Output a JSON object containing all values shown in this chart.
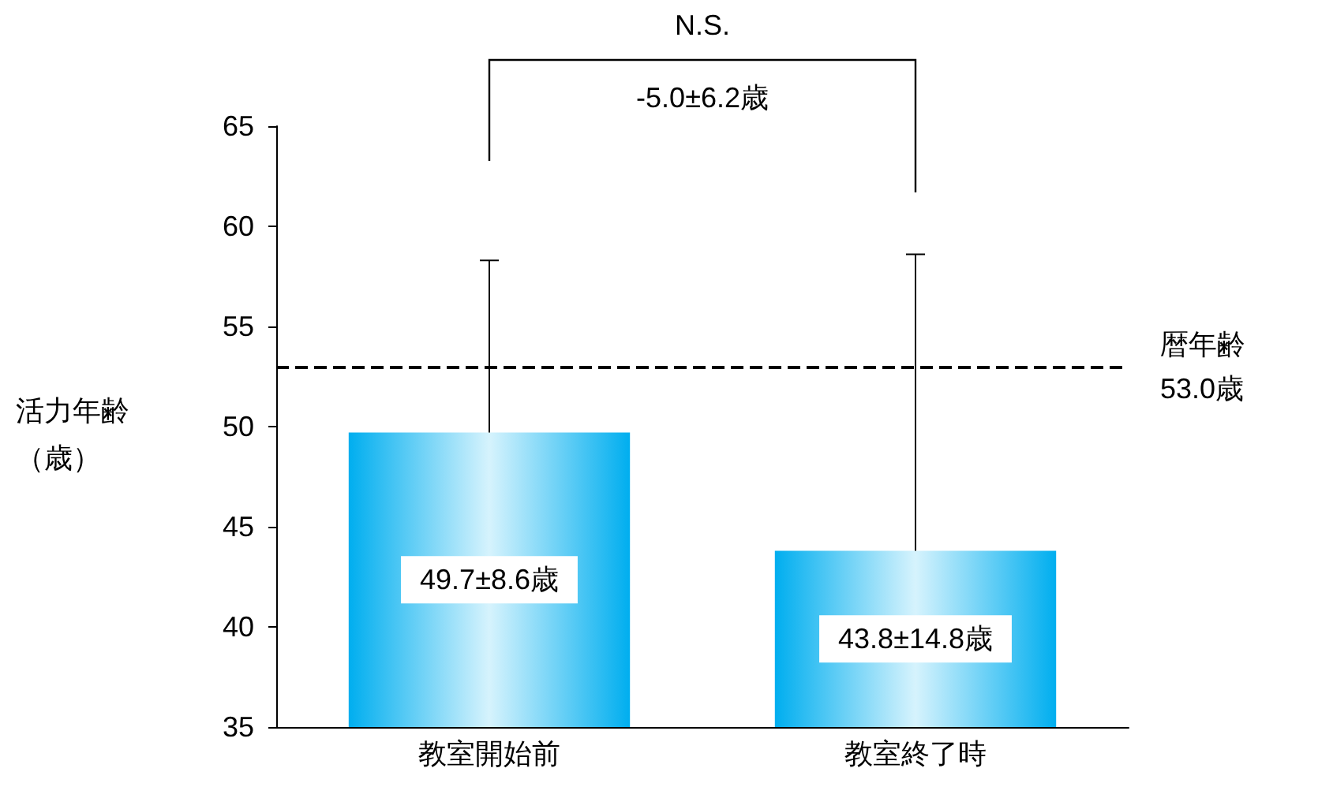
{
  "chart_data": {
    "type": "bar",
    "ylabel": "活力年齢（歳）",
    "categories": [
      "教室開始前",
      "教室終了時"
    ],
    "values": [
      49.7,
      43.8
    ],
    "color": "#00aeef",
    "errors": [
      [
        49.7,
        58.3
      ],
      [
        43.8,
        58.6
      ]
    ],
    "value_labels": [
      "49.7±8.6歳",
      "43.8±14.8歳"
    ],
    "ylim": [
      35,
      65
    ],
    "yticks": [
      35,
      40,
      45,
      50,
      55,
      60,
      65
    ],
    "grid": false,
    "ref_lines": [
      {
        "axis": "y",
        "value": 53.0,
        "label": "暦年齢53.0歳",
        "line_style": "dashed",
        "color": "#000000"
      }
    ],
    "annotations": [
      "N.S.",
      "-5.0±6.2歳"
    ]
  }
}
